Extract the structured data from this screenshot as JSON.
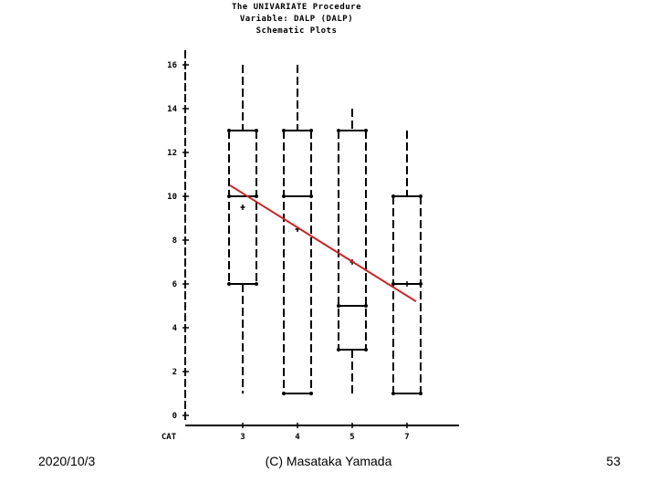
{
  "slide": {
    "date": "2020/10/3",
    "author": "(C) Masataka Yamada",
    "page_number": "53"
  },
  "chart_data": {
    "type": "boxplot",
    "title_lines": [
      "The UNIVARIATE Procedure",
      "Variable:  DALP  (DALP)",
      "Schematic Plots"
    ],
    "category_label": "CAT",
    "categories": [
      "3",
      "4",
      "5",
      "7"
    ],
    "y_ticks": [
      0,
      2,
      4,
      6,
      8,
      10,
      12,
      14,
      16
    ],
    "ylim": [
      0,
      16
    ],
    "boxes": [
      {
        "category": "3",
        "whisker_low": 1,
        "q1": 6,
        "median": 10,
        "q3": 13,
        "whisker_high": 16,
        "mean": 9.5
      },
      {
        "category": "4",
        "whisker_low": 1,
        "q1": 1,
        "median": 10,
        "q3": 13,
        "whisker_high": 16,
        "mean": 8.5
      },
      {
        "category": "5",
        "whisker_low": 1,
        "q1": 3,
        "median": 5,
        "q3": 13,
        "whisker_high": 14,
        "mean": 7
      },
      {
        "category": "7",
        "whisker_low": 1,
        "q1": 1,
        "median": 6,
        "q3": 10,
        "whisker_high": 13,
        "mean": 6
      }
    ],
    "trend_line": {
      "color": "#cc2222",
      "y_start": 10.5,
      "y_end": 5.2
    },
    "colors": {
      "axis": "#000000",
      "box": "#000000",
      "trend": "#cc2222"
    }
  }
}
